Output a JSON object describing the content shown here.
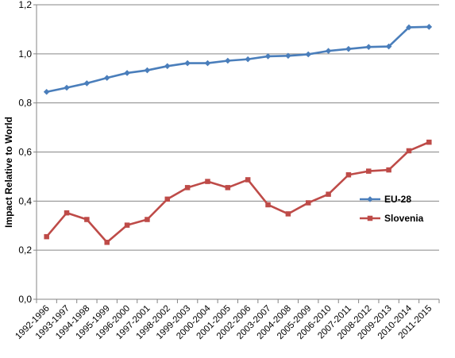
{
  "chart_data": {
    "type": "line",
    "title": "",
    "xlabel": "",
    "ylabel": "Impact Relative to World",
    "ylim": [
      0,
      1.2
    ],
    "yticks": [
      "0,0",
      "0,2",
      "0,4",
      "0,6",
      "0,8",
      "1,0",
      "1,2"
    ],
    "grid": true,
    "legend_position": "right",
    "categories": [
      "1992-1996",
      "1993-1997",
      "1994-1998",
      "1995-1999",
      "1996-2000",
      "1997-2001",
      "1998-2002",
      "1999-2003",
      "2000-2004",
      "2001-2005",
      "2002-2006",
      "2003-2007",
      "2004-2008",
      "2005-2009",
      "2006-2010",
      "2007-2011",
      "2008-2012",
      "2009-2013",
      "2010-2014",
      "2011-2015"
    ],
    "series": [
      {
        "name": "EU-28",
        "color": "#4a7ebb",
        "marker": "diamond",
        "values": [
          0.845,
          0.862,
          0.88,
          0.902,
          0.922,
          0.933,
          0.95,
          0.962,
          0.962,
          0.972,
          0.978,
          0.99,
          0.992,
          0.998,
          1.012,
          1.02,
          1.028,
          1.03,
          1.108,
          1.11
        ]
      },
      {
        "name": "Slovenia",
        "color": "#be4b48",
        "marker": "square",
        "values": [
          0.255,
          0.352,
          0.325,
          0.232,
          0.302,
          0.325,
          0.408,
          0.455,
          0.48,
          0.455,
          0.487,
          0.385,
          0.348,
          0.393,
          0.428,
          0.507,
          0.522,
          0.527,
          0.605,
          0.64
        ]
      }
    ]
  }
}
